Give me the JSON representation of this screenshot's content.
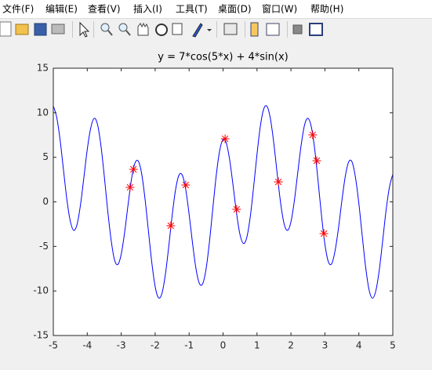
{
  "menu": [
    "文件(F)",
    "编辑(E)",
    "查看(V)",
    "插入(I)",
    "工具(T)",
    "桌面(D)",
    "窗口(W)",
    "帮助(H)"
  ],
  "chart_data": {
    "type": "line",
    "title": "y = 7*cos(5*x) + 4*sin(x)",
    "xlim": [
      -5,
      5
    ],
    "xticks": [
      -5,
      -4,
      -3,
      -2,
      -1,
      0,
      1,
      2,
      3,
      4,
      5
    ],
    "ylim": [
      -15,
      15
    ],
    "yticks": [
      -15,
      -10,
      -5,
      0,
      5,
      10,
      15
    ],
    "grid": false,
    "series": [
      {
        "color": "#0000ff",
        "marker": "none",
        "line": true,
        "x": [
          -5,
          -4.9,
          -4.8,
          -4.7,
          -4.6,
          -4.5,
          -4.4,
          -4.3,
          -4.2,
          -4.1,
          -4,
          -3.9,
          -3.8,
          -3.7,
          -3.6,
          -3.5,
          -3.4,
          -3.3,
          -3.2,
          -3.1,
          -3,
          -2.9,
          -2.8,
          -2.7,
          -2.6,
          -2.5,
          -2.4,
          -2.3,
          -2.2,
          -2.1,
          -2,
          -1.9,
          -1.8,
          -1.7,
          -1.6,
          -1.5,
          -1.4,
          -1.3,
          -1.2,
          -1.1,
          -1,
          -0.9,
          -0.8,
          -0.7,
          -0.6,
          -0.5,
          -0.4,
          -0.3,
          -0.2,
          -0.1,
          0,
          0.1,
          0.2,
          0.3,
          0.4,
          0.5,
          0.6,
          0.7,
          0.8,
          0.9,
          1,
          1.1,
          1.2,
          1.3,
          1.4,
          1.5,
          1.6,
          1.7,
          1.8,
          1.9,
          2,
          2.1,
          2.2,
          2.3,
          2.4,
          2.5,
          2.6,
          2.7,
          2.8,
          2.9,
          3,
          3.1,
          3.2,
          3.3,
          3.4,
          3.5,
          3.6,
          3.7,
          3.8,
          3.9,
          4,
          4.1,
          4.2,
          4.3,
          4.4,
          4.5,
          4.6,
          4.7,
          4.8,
          4.9,
          5
        ],
        "values": [
          10.77,
          9.49,
          6.95,
          3.57,
          0.25,
          -2.16,
          -3.19,
          -2.53,
          -0.35,
          2.72,
          5.88,
          8.25,
          9.37,
          8.72,
          6.39,
          2.94,
          -0.9,
          -4.21,
          -6.47,
          -7.03,
          -5.88,
          -3.45,
          -0.38,
          2.48,
          4.29,
          4.59,
          3.21,
          0.38,
          -3.2,
          -6.78,
          -9.51,
          -10.77,
          -10.27,
          -8.18,
          -5.02,
          -1.56,
          1.34,
          2.98,
          2.99,
          1.4,
          -1.38,
          -4.61,
          -7.45,
          -9.13,
          -9.19,
          -7.53,
          -4.47,
          -0.69,
          2.99,
          5.74,
          7,
          6.54,
          4.58,
          1.68,
          -1.36,
          -3.69,
          -4.67,
          -3.98,
          -1.71,
          1.66,
          5.35,
          8.53,
          10.45,
          10.69,
          9.22,
          6.42,
          2.98,
          -0.25,
          -2.48,
          -3.2,
          -2.24,
          0.12,
          3.27,
          6.35,
          8.61,
          9.38,
          8.41,
          5.9,
          2.3,
          -1.54,
          -4.75,
          -6.7,
          -6.94,
          -5.48,
          -2.95,
          0.13,
          2.85,
          4.48,
          4.47,
          2.75,
          -0.17,
          -3.83,
          -7.32,
          -9.86,
          -10.81,
          -9.98,
          -7.7,
          -4.43,
          -1.02,
          1.63,
          3.1
        ]
      },
      {
        "color": "#ff0000",
        "marker": "*",
        "line": false,
        "x": [
          -2.74,
          -2.64,
          -1.54,
          -1.1,
          0.06,
          0.4,
          1.63,
          2.64,
          2.76,
          2.97
        ],
        "values": [
          1.63,
          3.65,
          -2.68,
          1.89,
          7.08,
          -0.84,
          2.24,
          7.52,
          4.62,
          -3.56
        ]
      }
    ]
  }
}
